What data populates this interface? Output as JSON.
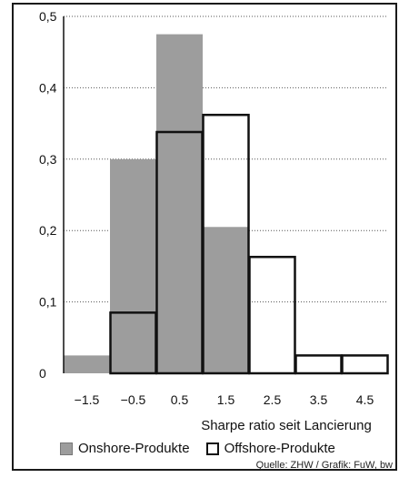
{
  "chart_data": {
    "type": "bar",
    "title": "",
    "xlabel": "Sharpe ratio seit Lancierung",
    "ylabel": "",
    "categories": [
      "−1.5",
      "−0.5",
      "0.5",
      "1.5",
      "2.5",
      "3.5",
      "4.5"
    ],
    "ylim": [
      0,
      0.5
    ],
    "yticks": [
      "0",
      "0,1",
      "0,2",
      "0,3",
      "0,4",
      "0,5"
    ],
    "grid": true,
    "legend": "bottom",
    "series": [
      {
        "name": "Onshore-Produkte",
        "style": "filled",
        "color": "#9d9d9d",
        "values": [
          0.025,
          0.3,
          0.475,
          0.205,
          0,
          0,
          0
        ]
      },
      {
        "name": "Offshore-Produkte",
        "style": "outline",
        "color": "#111111",
        "values": [
          0,
          0.085,
          0.338,
          0.362,
          0.163,
          0.025,
          0.025
        ]
      }
    ]
  },
  "legend": {
    "onshore": "Onshore-Produkte",
    "offshore": "Offshore-Produkte"
  },
  "source": "Quelle: ZHW / Grafik: FuW, bw"
}
